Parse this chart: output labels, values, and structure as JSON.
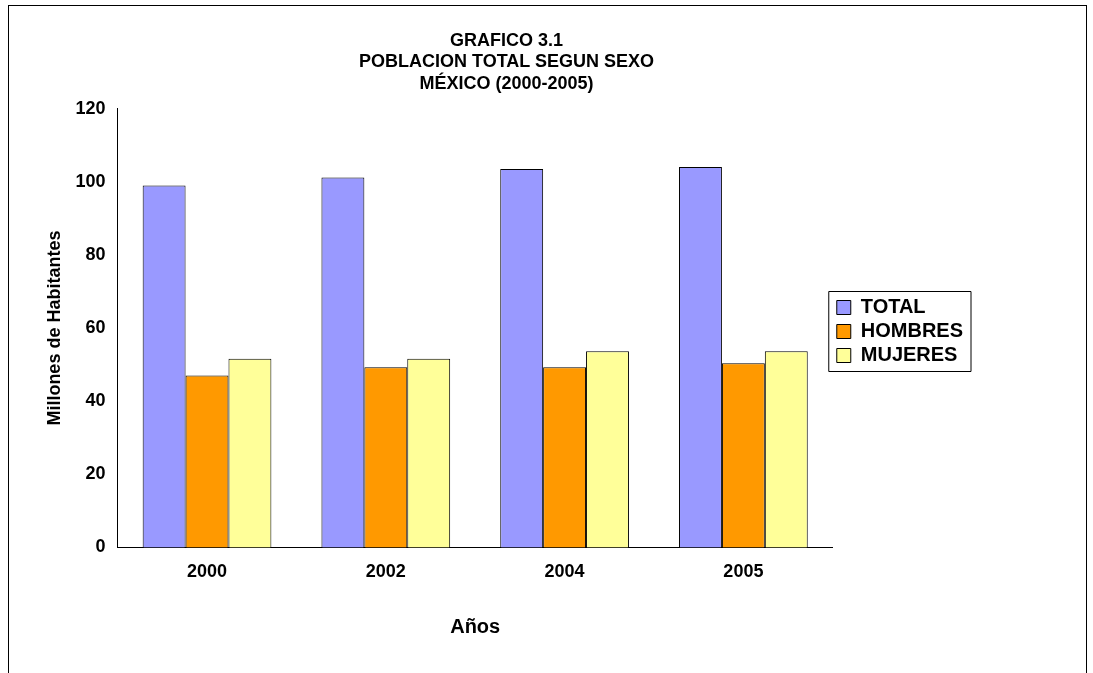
{
  "chart_data": {
    "type": "bar",
    "title": "GRAFICO 3.1\nPOBLACION TOTAL SEGUN SEXO\nMÉXICO (2000-2005)",
    "xlabel": "Años",
    "ylabel": "Millones de Habitantes",
    "categories": [
      "2000",
      "2002",
      "2004",
      "2005"
    ],
    "series": [
      {
        "name": "TOTAL",
        "color": "#9999ff",
        "values": [
          99,
          101.2,
          103.5,
          104.1
        ]
      },
      {
        "name": "HOMBRES",
        "color": "#ff9900",
        "values": [
          47,
          49.3,
          49.3,
          50.4
        ]
      },
      {
        "name": "MUJERES",
        "color": "#ffff99",
        "values": [
          51.6,
          51.6,
          53.7,
          53.7
        ]
      }
    ],
    "ylim": [
      0,
      120
    ],
    "yticks": [
      0,
      20,
      40,
      60,
      80,
      100,
      120
    ],
    "grid": false,
    "legend": "right"
  }
}
